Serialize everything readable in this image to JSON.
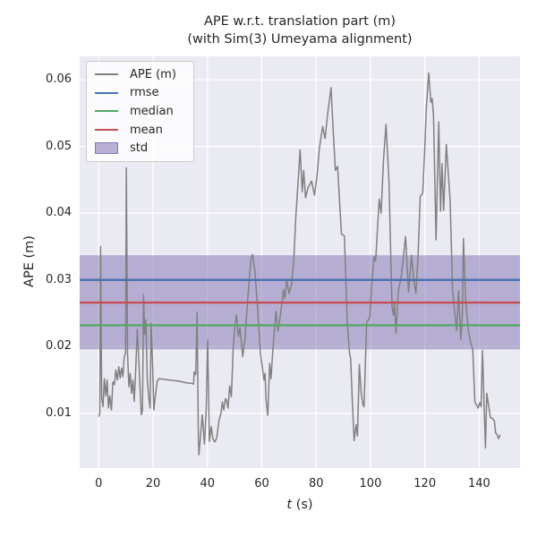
{
  "title": {
    "line1": "APE w.r.t. translation part (m)",
    "line2": "(with Sim(3) Umeyama alignment)"
  },
  "axes": {
    "xlabel": "t (s)",
    "xlabel_italic": "t",
    "xlabel_unit": " (s)",
    "ylabel": "APE (m)",
    "x_ticks": [
      0,
      20,
      40,
      60,
      80,
      100,
      120,
      140
    ],
    "y_ticks": [
      0.01,
      0.02,
      0.03,
      0.04,
      0.05,
      0.06
    ]
  },
  "legend": {
    "items": [
      {
        "label": "APE (m)",
        "type": "line",
        "color": "#808080"
      },
      {
        "label": "rmse",
        "type": "line",
        "color": "#4C72B0"
      },
      {
        "label": "median",
        "type": "line",
        "color": "#55A868"
      },
      {
        "label": "mean",
        "type": "line",
        "color": "#C44E52"
      },
      {
        "label": "std",
        "type": "patch",
        "color": "rgba(129,114,178,0.55)",
        "edge": "rgba(129,114,178,0.95)"
      }
    ]
  },
  "colors": {
    "figure_bg": "#ffffff",
    "axes_bg": "#EAEAF2",
    "grid": "#ffffff",
    "text": "#262626",
    "ape_line": "#808080",
    "rmse": "#4C72B0",
    "median": "#55A868",
    "mean": "#C44E52",
    "std_band": "rgba(129,114,178,0.5)"
  },
  "chart_data": {
    "type": "line",
    "title": "APE w.r.t. translation part (m) (with Sim(3) Umeyama alignment)",
    "xlabel": "t (s)",
    "ylabel": "APE (m)",
    "xlim": [
      -7.0,
      155.0
    ],
    "ylim": [
      0.0018,
      0.0635
    ],
    "grid": true,
    "legend_position": "upper left",
    "statistics": {
      "rmse": 0.03,
      "mean": 0.0266,
      "median": 0.0232,
      "std": 0.007,
      "std_band": [
        0.0196,
        0.0337
      ]
    },
    "series": [
      {
        "name": "APE (m)",
        "color": "#808080",
        "points": [
          [
            0.0,
            0.0095
          ],
          [
            0.4,
            0.01
          ],
          [
            0.7,
            0.035
          ],
          [
            1.1,
            0.0123
          ],
          [
            1.6,
            0.011
          ],
          [
            2.1,
            0.0152
          ],
          [
            2.6,
            0.0126
          ],
          [
            3.1,
            0.015
          ],
          [
            3.6,
            0.0108
          ],
          [
            4.1,
            0.0126
          ],
          [
            4.7,
            0.0105
          ],
          [
            5.2,
            0.0147
          ],
          [
            5.8,
            0.0143
          ],
          [
            6.3,
            0.0165
          ],
          [
            6.9,
            0.015
          ],
          [
            7.4,
            0.017
          ],
          [
            7.9,
            0.0153
          ],
          [
            8.4,
            0.0168
          ],
          [
            8.9,
            0.0155
          ],
          [
            9.4,
            0.0185
          ],
          [
            9.9,
            0.019
          ],
          [
            10.2,
            0.0468
          ],
          [
            10.6,
            0.019
          ],
          [
            11.1,
            0.014
          ],
          [
            11.6,
            0.016
          ],
          [
            12.1,
            0.013
          ],
          [
            12.6,
            0.015
          ],
          [
            13.1,
            0.0118
          ],
          [
            13.6,
            0.0165
          ],
          [
            14.2,
            0.0226
          ],
          [
            14.7,
            0.0185
          ],
          [
            15.2,
            0.014
          ],
          [
            15.7,
            0.0098
          ],
          [
            16.1,
            0.0105
          ],
          [
            16.5,
            0.0278
          ],
          [
            16.9,
            0.0218
          ],
          [
            17.4,
            0.024
          ],
          [
            17.9,
            0.015
          ],
          [
            18.4,
            0.0125
          ],
          [
            18.9,
            0.0108
          ],
          [
            19.3,
            0.0235
          ],
          [
            19.8,
            0.0177
          ],
          [
            20.3,
            0.0105
          ],
          [
            20.9,
            0.0128
          ],
          [
            21.5,
            0.0148
          ],
          [
            22.2,
            0.0152
          ],
          [
            24.0,
            0.0151
          ],
          [
            26.0,
            0.015
          ],
          [
            28.0,
            0.0149
          ],
          [
            30.0,
            0.0148
          ],
          [
            32.0,
            0.0146
          ],
          [
            34.0,
            0.0145
          ],
          [
            34.9,
            0.0144
          ],
          [
            35.1,
            0.0162
          ],
          [
            35.7,
            0.0158
          ],
          [
            36.2,
            0.0251
          ],
          [
            36.7,
            0.006
          ],
          [
            36.9,
            0.0038
          ],
          [
            37.4,
            0.0062
          ],
          [
            38.1,
            0.0098
          ],
          [
            38.9,
            0.0054
          ],
          [
            39.6,
            0.0108
          ],
          [
            40.1,
            0.021
          ],
          [
            40.7,
            0.0058
          ],
          [
            41.4,
            0.008
          ],
          [
            42.0,
            0.0062
          ],
          [
            42.7,
            0.0057
          ],
          [
            43.4,
            0.0063
          ],
          [
            44.3,
            0.009
          ],
          [
            45.0,
            0.01
          ],
          [
            45.5,
            0.0117
          ],
          [
            46.0,
            0.0105
          ],
          [
            46.6,
            0.0122
          ],
          [
            47.0,
            0.012
          ],
          [
            47.6,
            0.0108
          ],
          [
            48.2,
            0.0141
          ],
          [
            48.8,
            0.0125
          ],
          [
            49.5,
            0.0199
          ],
          [
            50.1,
            0.023
          ],
          [
            50.7,
            0.0248
          ],
          [
            51.4,
            0.0215
          ],
          [
            52.0,
            0.0228
          ],
          [
            53.0,
            0.0185
          ],
          [
            53.8,
            0.0212
          ],
          [
            54.6,
            0.0258
          ],
          [
            55.4,
            0.03
          ],
          [
            56.0,
            0.033
          ],
          [
            56.6,
            0.0338
          ],
          [
            57.5,
            0.0312
          ],
          [
            58.4,
            0.0262
          ],
          [
            59.5,
            0.019
          ],
          [
            60.3,
            0.0166
          ],
          [
            60.8,
            0.015
          ],
          [
            61.2,
            0.016
          ],
          [
            61.6,
            0.012
          ],
          [
            62.2,
            0.0097
          ],
          [
            62.9,
            0.0175
          ],
          [
            63.4,
            0.0152
          ],
          [
            64.1,
            0.0196
          ],
          [
            65.2,
            0.0253
          ],
          [
            66.0,
            0.0223
          ],
          [
            67.0,
            0.0252
          ],
          [
            68.0,
            0.0285
          ],
          [
            68.5,
            0.0272
          ],
          [
            69.2,
            0.03
          ],
          [
            70.0,
            0.028
          ],
          [
            70.9,
            0.0292
          ],
          [
            71.8,
            0.033
          ],
          [
            72.5,
            0.0392
          ],
          [
            73.3,
            0.0443
          ],
          [
            74.1,
            0.0495
          ],
          [
            74.9,
            0.0432
          ],
          [
            75.4,
            0.0464
          ],
          [
            76.1,
            0.0423
          ],
          [
            77.0,
            0.0438
          ],
          [
            78.3,
            0.0448
          ],
          [
            79.4,
            0.0427
          ],
          [
            80.3,
            0.0455
          ],
          [
            81.2,
            0.0498
          ],
          [
            82.4,
            0.053
          ],
          [
            83.3,
            0.0512
          ],
          [
            84.2,
            0.0548
          ],
          [
            85.5,
            0.0588
          ],
          [
            86.3,
            0.052
          ],
          [
            87.1,
            0.0464
          ],
          [
            87.9,
            0.047
          ],
          [
            88.6,
            0.042
          ],
          [
            89.3,
            0.0369
          ],
          [
            90.4,
            0.0366
          ],
          [
            91.5,
            0.0233
          ],
          [
            92.3,
            0.0189
          ],
          [
            92.7,
            0.0182
          ],
          [
            93.3,
            0.012
          ],
          [
            94.0,
            0.0059
          ],
          [
            94.7,
            0.0083
          ],
          [
            95.2,
            0.0066
          ],
          [
            95.9,
            0.0173
          ],
          [
            96.6,
            0.013
          ],
          [
            97.2,
            0.0113
          ],
          [
            97.6,
            0.011
          ],
          [
            98.6,
            0.0237
          ],
          [
            99.7,
            0.0243
          ],
          [
            100.4,
            0.029
          ],
          [
            101.3,
            0.0335
          ],
          [
            101.9,
            0.0328
          ],
          [
            103.2,
            0.0421
          ],
          [
            103.9,
            0.04
          ],
          [
            104.8,
            0.048
          ],
          [
            105.7,
            0.0533
          ],
          [
            106.8,
            0.0449
          ],
          [
            107.9,
            0.026
          ],
          [
            108.5,
            0.0247
          ],
          [
            108.8,
            0.0268
          ],
          [
            109.4,
            0.022
          ],
          [
            110.3,
            0.0285
          ],
          [
            111.2,
            0.0302
          ],
          [
            112.0,
            0.033
          ],
          [
            112.9,
            0.0365
          ],
          [
            114.0,
            0.0282
          ],
          [
            115.1,
            0.0337
          ],
          [
            115.9,
            0.03
          ],
          [
            116.7,
            0.028
          ],
          [
            117.5,
            0.0335
          ],
          [
            118.3,
            0.0425
          ],
          [
            119.2,
            0.043
          ],
          [
            120.0,
            0.05
          ],
          [
            120.5,
            0.0555
          ],
          [
            121.4,
            0.061
          ],
          [
            122.2,
            0.0566
          ],
          [
            122.7,
            0.0572
          ],
          [
            123.2,
            0.0545
          ],
          [
            124.1,
            0.036
          ],
          [
            125.1,
            0.0537
          ],
          [
            125.8,
            0.0403
          ],
          [
            126.3,
            0.0474
          ],
          [
            126.9,
            0.0404
          ],
          [
            127.9,
            0.0503
          ],
          [
            129.3,
            0.042
          ],
          [
            130.2,
            0.0284
          ],
          [
            131.0,
            0.0251
          ],
          [
            131.7,
            0.0224
          ],
          [
            132.4,
            0.0284
          ],
          [
            133.2,
            0.0211
          ],
          [
            133.8,
            0.0246
          ],
          [
            134.2,
            0.0362
          ],
          [
            135.0,
            0.027
          ],
          [
            136.0,
            0.0224
          ],
          [
            136.8,
            0.0207
          ],
          [
            137.6,
            0.0196
          ],
          [
            138.4,
            0.0117
          ],
          [
            139.6,
            0.0108
          ],
          [
            140.2,
            0.0116
          ],
          [
            140.7,
            0.011
          ],
          [
            141.2,
            0.0194
          ],
          [
            141.9,
            0.01
          ],
          [
            142.3,
            0.0048
          ],
          [
            142.8,
            0.013
          ],
          [
            143.5,
            0.011
          ],
          [
            144.1,
            0.0094
          ],
          [
            145.0,
            0.0092
          ],
          [
            145.6,
            0.0088
          ],
          [
            146.0,
            0.0071
          ],
          [
            146.6,
            0.0068
          ],
          [
            147.1,
            0.0062
          ],
          [
            147.7,
            0.0068
          ]
        ]
      }
    ]
  }
}
